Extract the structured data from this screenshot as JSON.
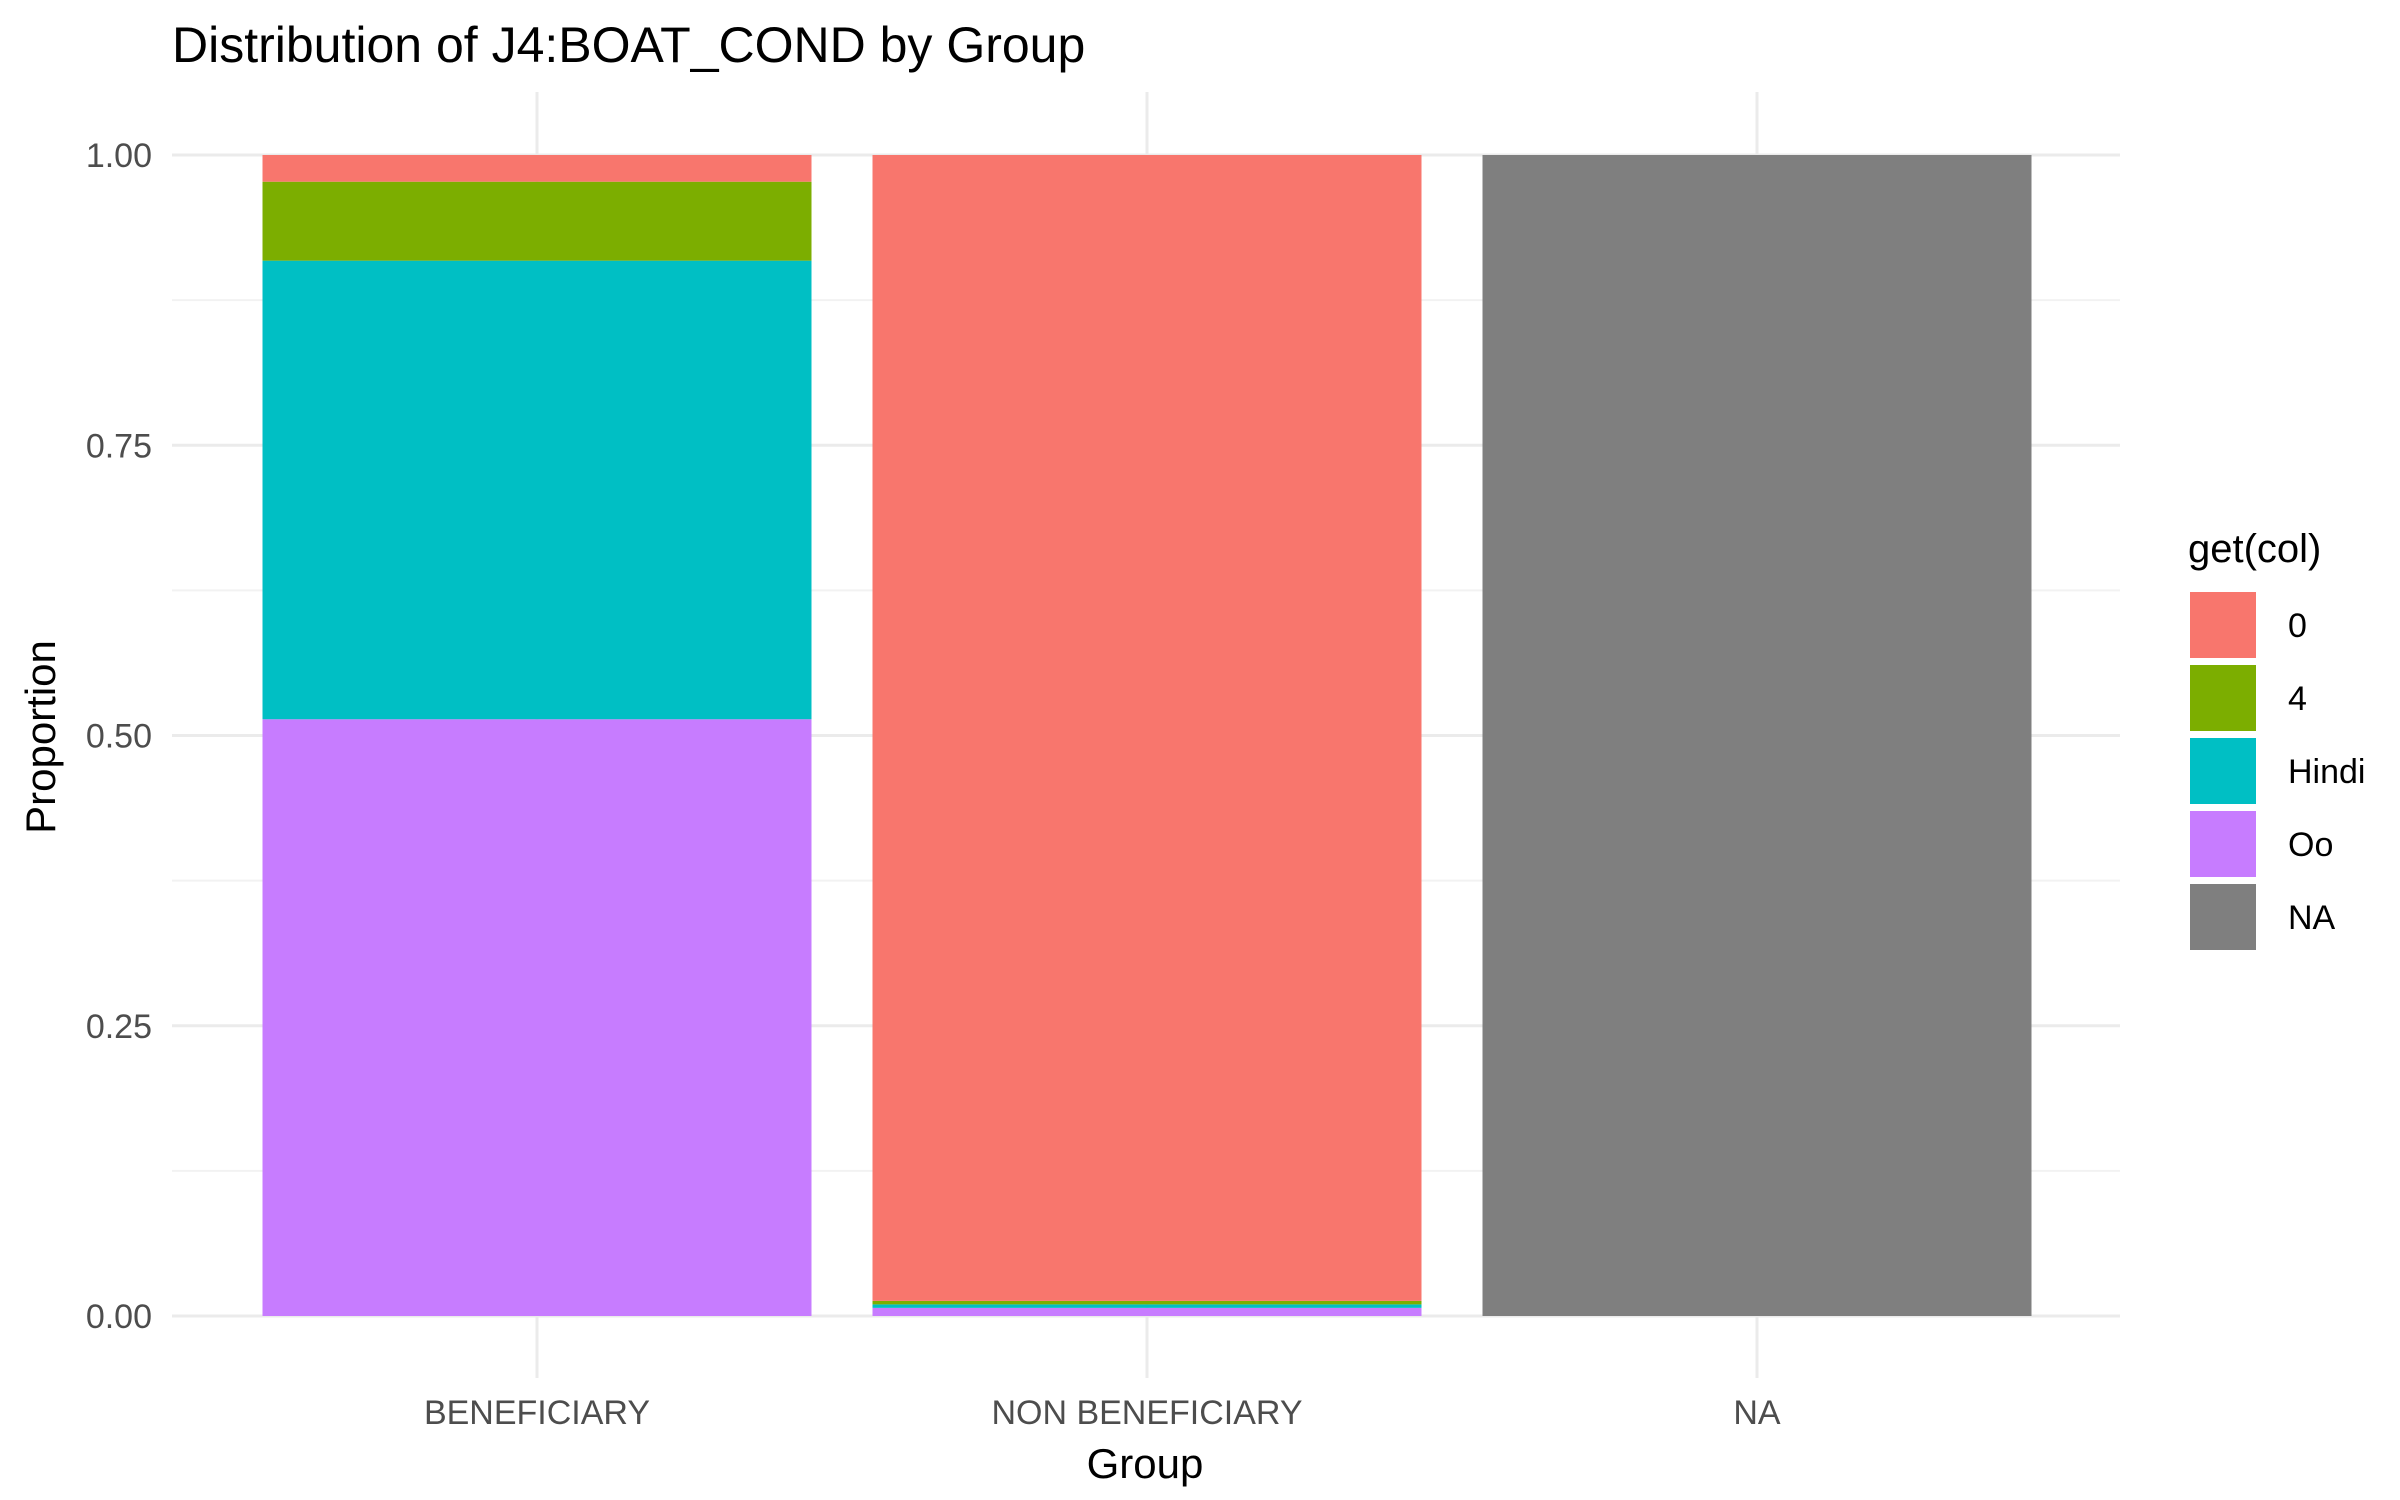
{
  "chart_data": {
    "type": "bar",
    "stacked": true,
    "title": "Distribution of J4:BOAT_COND by Group",
    "xlabel": "Group",
    "ylabel": "Proportion",
    "ylim": [
      0,
      1
    ],
    "y_ticks": [
      "0.00",
      "0.25",
      "0.50",
      "0.75",
      "1.00"
    ],
    "categories": [
      "BENEFICIARY",
      "NON BENEFICIARY",
      "NA"
    ],
    "legend_title": "get(col)",
    "legend_position": "right",
    "grid": true,
    "series": [
      {
        "name": "0",
        "color": "#F8766D",
        "values": [
          0.023,
          0.987,
          0
        ]
      },
      {
        "name": "4",
        "color": "#7CAE00",
        "values": [
          0.068,
          0.003,
          0
        ]
      },
      {
        "name": "Hindi",
        "color": "#00BFC4",
        "values": [
          0.395,
          0.003,
          0
        ]
      },
      {
        "name": "Oo",
        "color": "#C77CFF",
        "values": [
          0.514,
          0.007,
          0
        ]
      },
      {
        "name": "NA",
        "color": "#7F7F7F",
        "values": [
          0,
          0,
          1.0
        ]
      }
    ]
  }
}
